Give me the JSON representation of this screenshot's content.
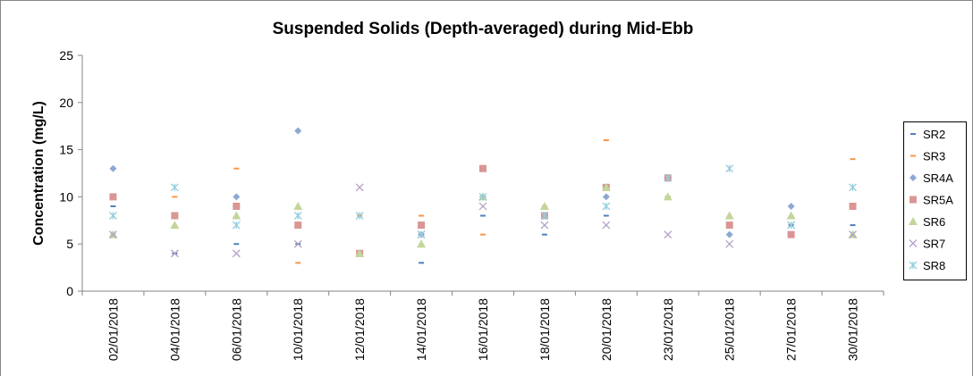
{
  "chart_data": {
    "type": "scatter",
    "title": "Suspended Solids (Depth-averaged) during Mid-Ebb",
    "y_label": "Concentration (mg/L)",
    "categories": [
      "02/01/2018",
      "04/01/2018",
      "06/01/2018",
      "10/01/2018",
      "12/01/2018",
      "14/01/2018",
      "16/01/2018",
      "18/01/2018",
      "20/01/2018",
      "23/01/2018",
      "25/01/2018",
      "27/01/2018",
      "30/01/2018"
    ],
    "ylim": [
      0,
      25
    ],
    "yticks": [
      0,
      5,
      10,
      15,
      20,
      25
    ],
    "grid": false,
    "legend": "right",
    "series": [
      {
        "name": "SR2",
        "color": "#4f81bd",
        "marker": "dash",
        "values": [
          9,
          4,
          5,
          5,
          4,
          3,
          8,
          6,
          8,
          10,
          7,
          7,
          7
        ]
      },
      {
        "name": "SR3",
        "color": "#f79646",
        "marker": "dash",
        "values": [
          6,
          10,
          13,
          3,
          8,
          8,
          6,
          9,
          16,
          10,
          7,
          6,
          14
        ]
      },
      {
        "name": "SR4A",
        "color": "#8ea7d4",
        "marker": "diamond",
        "values": [
          13,
          null,
          10,
          17,
          null,
          6,
          10,
          8,
          10,
          12,
          6,
          9,
          9
        ]
      },
      {
        "name": "SR5A",
        "color": "#d99694",
        "marker": "square",
        "values": [
          10,
          8,
          9,
          7,
          4,
          7,
          13,
          8,
          11,
          12,
          7,
          6,
          9
        ]
      },
      {
        "name": "SR6",
        "color": "#c3d69b",
        "marker": "triangle",
        "values": [
          6,
          7,
          8,
          9,
          4,
          5,
          10,
          9,
          11,
          10,
          8,
          8,
          6
        ]
      },
      {
        "name": "SR7",
        "color": "#b3a2c7",
        "marker": "x",
        "values": [
          6,
          4,
          4,
          5,
          11,
          6,
          9,
          7,
          7,
          6,
          5,
          7,
          6
        ]
      },
      {
        "name": "SR8",
        "color": "#93cddd",
        "marker": "star",
        "values": [
          8,
          11,
          7,
          8,
          8,
          6,
          10,
          8,
          9,
          12,
          13,
          7,
          11
        ]
      }
    ]
  }
}
